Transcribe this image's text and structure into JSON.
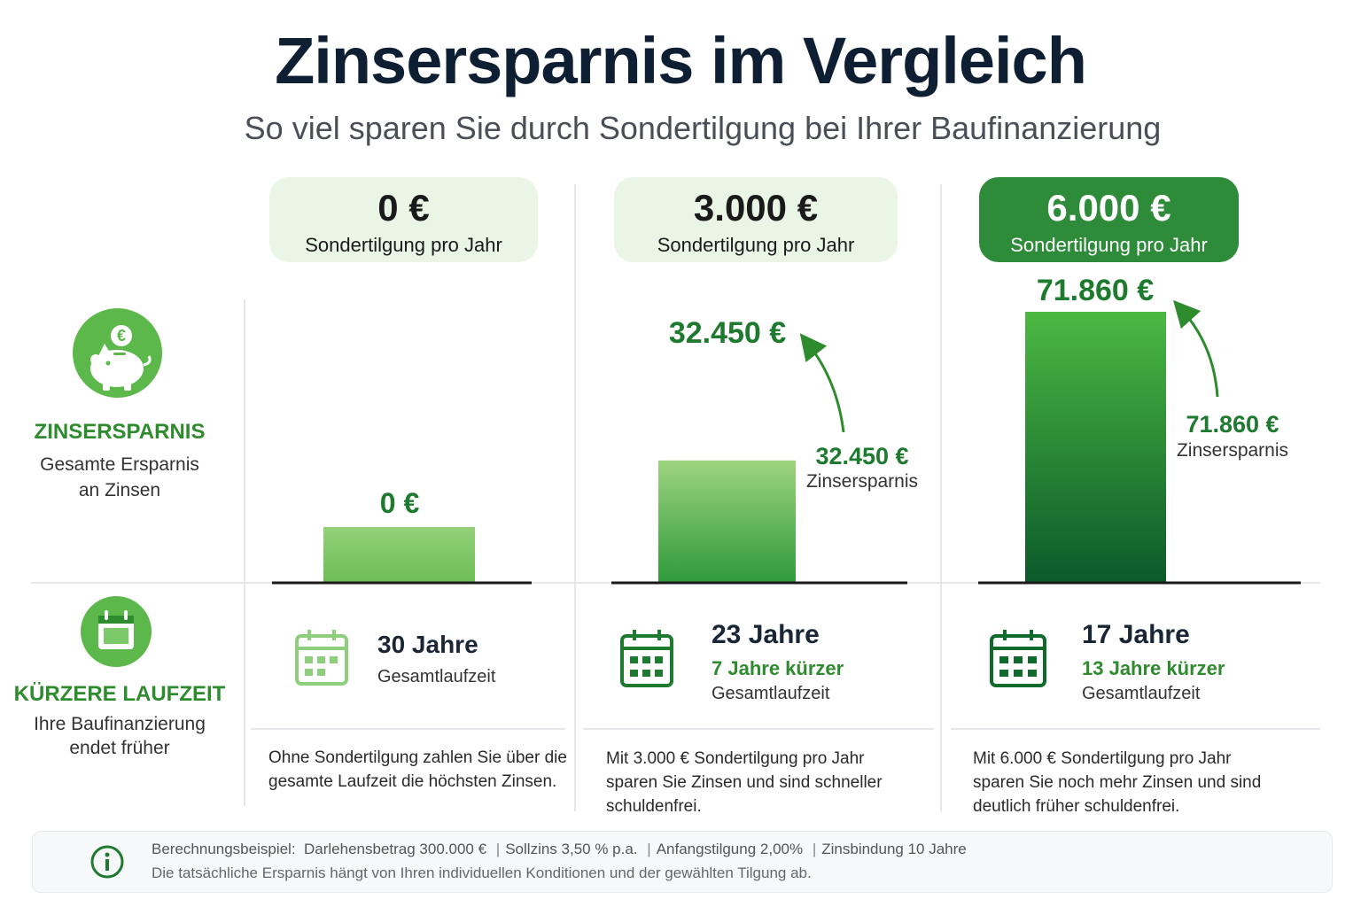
{
  "header": {
    "title": "Zinsersparnis im Vergleich",
    "subtitle": "So viel sparen Sie durch Sondertilgung bei Ihrer Baufinanzierung"
  },
  "rows": {
    "savings": {
      "title": "ZINSERSPARNIS",
      "line1": "Gesamte Ersparnis",
      "line2": "an Zinsen"
    },
    "term": {
      "title": "KÜRZERE LAUFZEIT",
      "line1": "Ihre Baufinanzierung",
      "line2": "endet früher"
    }
  },
  "columns": [
    {
      "amount": "0 €",
      "label": "Sondertilgung pro Jahr",
      "bar_label": "0 €",
      "duration": "30 Jahre",
      "shorter": "",
      "total_label": "Gesamtlaufzeit",
      "desc1": "Ohne Sondertilgung zahlen Sie über die",
      "desc2": "gesamte Laufzeit die höchsten Zinsen.",
      "desc3": ""
    },
    {
      "amount": "3.000 €",
      "label": "Sondertilgung pro Jahr",
      "bar_label": "32.450 €",
      "note_value": "32.450 €",
      "note_label": "Zinsersparnis",
      "duration": "23 Jahre",
      "shorter": "7 Jahre kürzer",
      "total_label": "Gesamtlaufzeit",
      "desc1": "Mit 3.000 € Sondertilgung pro Jahr",
      "desc2": "sparen Sie Zinsen und sind schneller",
      "desc3": "schuldenfrei."
    },
    {
      "amount": "6.000 €",
      "label": "Sondertilgung pro Jahr",
      "bar_label": "71.860 €",
      "note_value": "71.860 €",
      "note_label": "Zinsersparnis",
      "duration": "17 Jahre",
      "shorter": "13 Jahre kürzer",
      "total_label": "Gesamtlaufzeit",
      "desc1": "Mit 6.000 € Sondertilgung pro Jahr",
      "desc2": "sparen Sie noch mehr Zinsen und sind",
      "desc3": "deutlich früher schuldenfrei."
    }
  ],
  "footer": {
    "example_label": "Berechnungsbeispiel:",
    "loan": "Darlehensbetrag 300.000 €",
    "rate": "Sollzins 3,50 % p.a.",
    "repayment": "Anfangstilgung 2,00%",
    "fixed": "Zinsbindung 10 Jahre",
    "note": "Die tatsächliche Ersparnis hängt von Ihren individuellen Konditionen und der gewählten Tilgung ab."
  },
  "icons": {
    "savings": "piggy-bank-icon",
    "term": "calendar-icon",
    "info": "info-icon",
    "euro": "euro-coin-icon"
  },
  "colors": {
    "accent": "#2e8b2e",
    "dark_green": "#0b5a2a",
    "light_green": "#e9f5e5",
    "header_dark": "#2e8b3a"
  },
  "chart_data": {
    "type": "bar",
    "categories": [
      "0 €",
      "3.000 €",
      "6.000 €"
    ],
    "values": [
      0,
      32450,
      71860
    ],
    "unit": "€"
  }
}
